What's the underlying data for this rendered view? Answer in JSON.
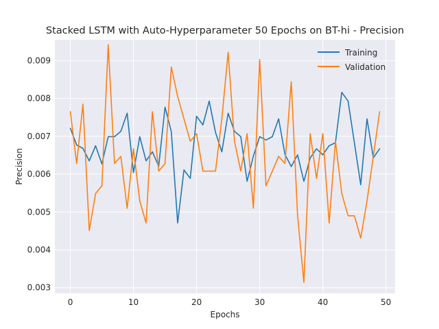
{
  "chart_data": {
    "type": "line",
    "title": "Stacked LSTM with Auto-Hyperparameter 50 Epochs on BT-hi - Precision",
    "xlabel": "Epochs",
    "ylabel": "Precision",
    "xlim": [
      -2.45,
      51.45
    ],
    "ylim": [
      0.00285,
      0.00955
    ],
    "xticks": [
      0,
      10,
      20,
      30,
      40,
      50
    ],
    "yticks": [
      0.003,
      0.004,
      0.005,
      0.006,
      0.007,
      0.008,
      0.009
    ],
    "ytick_labels": [
      "0.003",
      "0.004",
      "0.005",
      "0.006",
      "0.007",
      "0.008",
      "0.009"
    ],
    "grid": true,
    "legend_position": "top-right",
    "x": [
      0,
      1,
      2,
      3,
      4,
      5,
      6,
      7,
      8,
      9,
      10,
      11,
      12,
      13,
      14,
      15,
      16,
      17,
      18,
      19,
      20,
      21,
      22,
      23,
      24,
      25,
      26,
      27,
      28,
      29,
      30,
      31,
      32,
      33,
      34,
      35,
      36,
      37,
      38,
      39,
      40,
      41,
      42,
      43,
      44,
      45,
      46,
      47,
      48,
      49
    ],
    "series": [
      {
        "name": "Training",
        "color": "#1f77b4",
        "values": [
          0.00721,
          0.00677,
          0.00668,
          0.00635,
          0.00675,
          0.00627,
          0.00699,
          0.00699,
          0.00713,
          0.00761,
          0.00604,
          0.00699,
          0.00635,
          0.00659,
          0.00621,
          0.00777,
          0.00712,
          0.00471,
          0.00611,
          0.00589,
          0.00753,
          0.0073,
          0.00793,
          0.0071,
          0.00659,
          0.00761,
          0.00713,
          0.00699,
          0.00581,
          0.00648,
          0.00699,
          0.0069,
          0.00699,
          0.00746,
          0.00652,
          0.0062,
          0.00651,
          0.00581,
          0.00643,
          0.00667,
          0.00651,
          0.00675,
          0.00683,
          0.00816,
          0.00793,
          0.00683,
          0.00572,
          0.00746,
          0.00643,
          0.00667
        ]
      },
      {
        "name": "Validation",
        "color": "#ff7f0e",
        "values": [
          0.00765,
          0.00628,
          0.00785,
          0.00451,
          0.00549,
          0.00569,
          0.00942,
          0.00628,
          0.00647,
          0.0051,
          0.00667,
          0.00529,
          0.00471,
          0.00765,
          0.00608,
          0.00628,
          0.00883,
          0.00805,
          0.00746,
          0.00687,
          0.00707,
          0.00608,
          0.00608,
          0.00608,
          0.00746,
          0.00922,
          0.00687,
          0.00608,
          0.00707,
          0.0051,
          0.00903,
          0.00569,
          0.00608,
          0.00647,
          0.00628,
          0.00844,
          0.0049,
          0.00314,
          0.00707,
          0.00589,
          0.00707,
          0.00471,
          0.00687,
          0.00549,
          0.0049,
          0.0049,
          0.00431,
          0.00529,
          0.00647,
          0.00765
        ]
      }
    ]
  }
}
